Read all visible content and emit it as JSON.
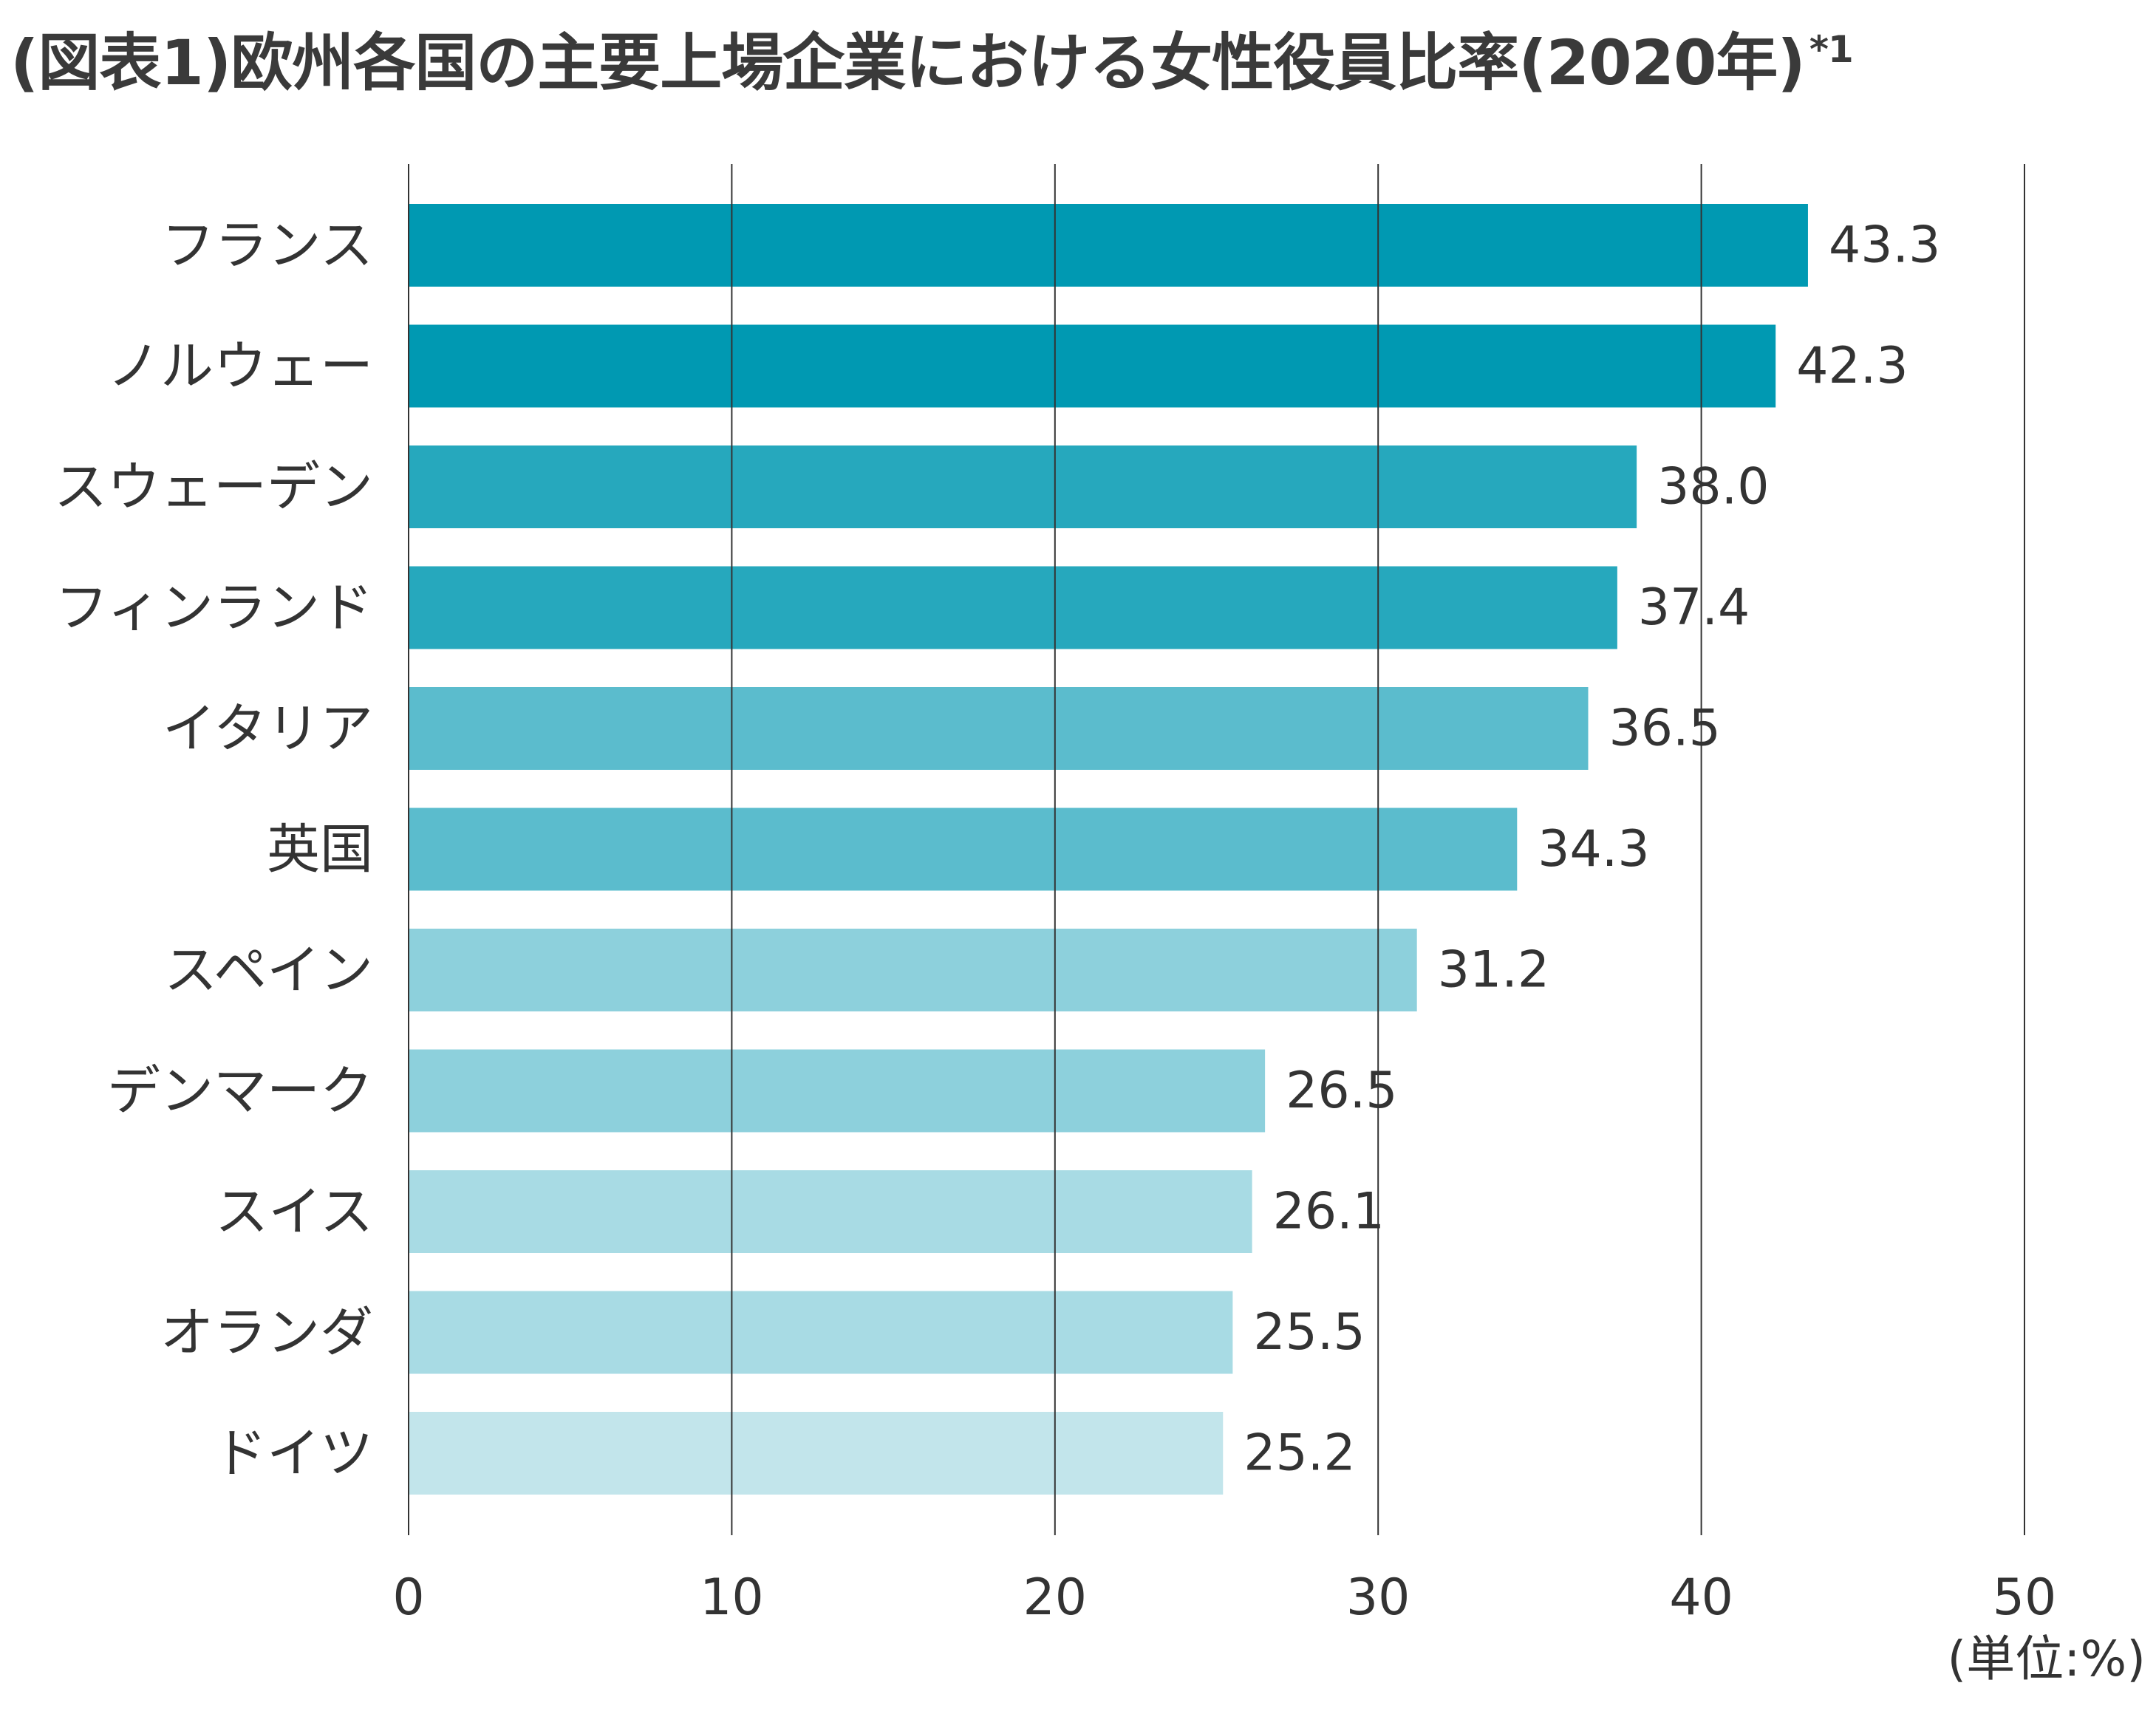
{
  "chart_data": {
    "type": "bar",
    "orientation": "horizontal",
    "title": "(図表1)欧州各国の主要上場企業における女性役員比率(2020年)",
    "title_note": "*1",
    "unit_label": "(単位:%)",
    "categories": [
      "フランス",
      "ノルウェー",
      "スウェーデン",
      "フィンランド",
      "イタリア",
      "英国",
      "スペイン",
      "デンマーク",
      "スイス",
      "オランダ",
      "ドイツ"
    ],
    "values": [
      43.3,
      42.3,
      38.0,
      37.4,
      36.5,
      34.3,
      31.2,
      26.5,
      26.1,
      25.5,
      25.2
    ],
    "value_labels": [
      "43.3",
      "42.3",
      "38.0",
      "37.4",
      "36.5",
      "34.3",
      "31.2",
      "26.5",
      "26.1",
      "25.5",
      "25.2"
    ],
    "bar_colors": [
      "#0099b2",
      "#0099b2",
      "#26a8bd",
      "#26a8bd",
      "#5bbccd",
      "#5bbccd",
      "#8dd0dc",
      "#8dd0dc",
      "#a8dbe4",
      "#a8dbe4",
      "#c2e5eb"
    ],
    "xlim": [
      0,
      50
    ],
    "xticks": [
      0,
      10,
      20,
      30,
      40,
      50
    ],
    "xtick_labels": [
      "0",
      "10",
      "20",
      "30",
      "40",
      "50"
    ],
    "grid": "vertical",
    "gridline_color": "#333333"
  }
}
